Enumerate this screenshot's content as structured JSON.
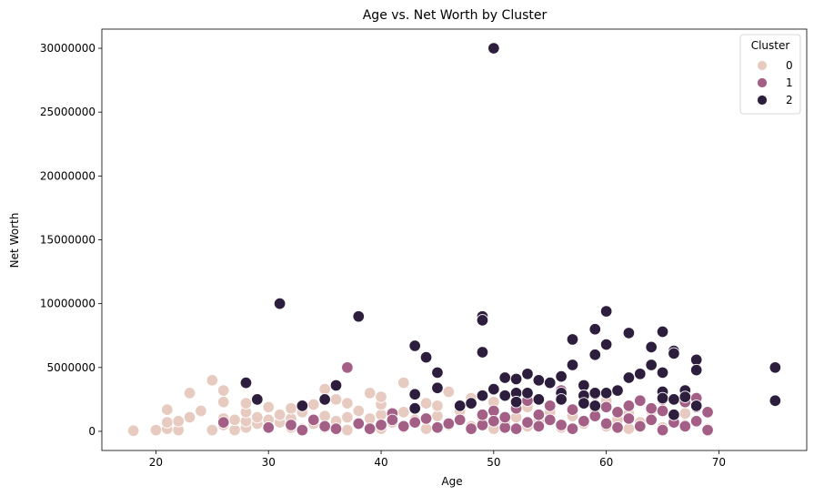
{
  "chart_data": {
    "type": "scatter",
    "title": "Age vs. Net Worth by Cluster",
    "xlabel": "Age",
    "ylabel": "Net Worth",
    "xlim": [
      15.2,
      77.8
    ],
    "ylim": [
      -1500000,
      31500000
    ],
    "xticks": [
      20,
      30,
      40,
      50,
      60,
      70
    ],
    "yticks": [
      0,
      5000000,
      10000000,
      15000000,
      20000000,
      25000000,
      30000000
    ],
    "grid": false,
    "legend": {
      "title": "Cluster",
      "position": "top-right"
    },
    "series": [
      {
        "name": "0",
        "color": "#e8cbc0",
        "points": [
          [
            18,
            50000
          ],
          [
            20,
            100000
          ],
          [
            21,
            200000
          ],
          [
            21,
            700000
          ],
          [
            21,
            1700000
          ],
          [
            22,
            100000
          ],
          [
            22,
            800000
          ],
          [
            23,
            1100000
          ],
          [
            23,
            3000000
          ],
          [
            24,
            1600000
          ],
          [
            25,
            100000
          ],
          [
            25,
            4000000
          ],
          [
            26,
            500000
          ],
          [
            26,
            1000000
          ],
          [
            26,
            2300000
          ],
          [
            26,
            3200000
          ],
          [
            27,
            100000
          ],
          [
            27,
            900000
          ],
          [
            28,
            300000
          ],
          [
            28,
            800000
          ],
          [
            28,
            1500000
          ],
          [
            28,
            2200000
          ],
          [
            29,
            600000
          ],
          [
            29,
            1100000
          ],
          [
            30,
            400000
          ],
          [
            30,
            900000
          ],
          [
            30,
            1900000
          ],
          [
            31,
            700000
          ],
          [
            31,
            1300000
          ],
          [
            32,
            300000
          ],
          [
            32,
            1000000
          ],
          [
            32,
            1800000
          ],
          [
            33,
            200000
          ],
          [
            33,
            1500000
          ],
          [
            34,
            600000
          ],
          [
            34,
            2100000
          ],
          [
            35,
            300000
          ],
          [
            35,
            1200000
          ],
          [
            35,
            3300000
          ],
          [
            36,
            800000
          ],
          [
            36,
            2500000
          ],
          [
            37,
            100000
          ],
          [
            37,
            1100000
          ],
          [
            37,
            2200000
          ],
          [
            38,
            600000
          ],
          [
            38,
            1600000
          ],
          [
            39,
            1000000
          ],
          [
            39,
            3000000
          ],
          [
            40,
            200000
          ],
          [
            40,
            1300000
          ],
          [
            40,
            2100000
          ],
          [
            40,
            2700000
          ],
          [
            41,
            700000
          ],
          [
            42,
            300000
          ],
          [
            42,
            1500000
          ],
          [
            42,
            3800000
          ],
          [
            43,
            900000
          ],
          [
            44,
            200000
          ],
          [
            44,
            2200000
          ],
          [
            45,
            1200000
          ],
          [
            45,
            2000000
          ],
          [
            46,
            3100000
          ],
          [
            46,
            500000
          ],
          [
            47,
            1600000
          ],
          [
            48,
            400000
          ],
          [
            48,
            2600000
          ],
          [
            49,
            1000000
          ],
          [
            49,
            2900000
          ],
          [
            50,
            200000
          ],
          [
            50,
            1700000
          ],
          [
            50,
            2300000
          ],
          [
            51,
            600000
          ],
          [
            52,
            1100000
          ],
          [
            53,
            400000
          ],
          [
            53,
            1900000
          ],
          [
            54,
            800000
          ],
          [
            55,
            1500000
          ],
          [
            56,
            300000
          ],
          [
            57,
            1200000
          ],
          [
            58,
            600000
          ],
          [
            59,
            1800000
          ],
          [
            60,
            400000
          ],
          [
            60,
            2400000
          ],
          [
            61,
            900000
          ],
          [
            62,
            200000
          ],
          [
            62,
            1400000
          ],
          [
            63,
            700000
          ],
          [
            64,
            1600000
          ],
          [
            65,
            300000
          ],
          [
            66,
            1000000
          ],
          [
            67,
            1400000
          ],
          [
            67,
            500000
          ],
          [
            68,
            800000
          ],
          [
            69,
            200000
          ]
        ]
      },
      {
        "name": "1",
        "color": "#a45f86",
        "points": [
          [
            26,
            700000
          ],
          [
            30,
            300000
          ],
          [
            32,
            500000
          ],
          [
            33,
            100000
          ],
          [
            34,
            900000
          ],
          [
            35,
            400000
          ],
          [
            36,
            200000
          ],
          [
            37,
            5000000
          ],
          [
            38,
            600000
          ],
          [
            39,
            200000
          ],
          [
            40,
            500000
          ],
          [
            41,
            1400000
          ],
          [
            41,
            900000
          ],
          [
            42,
            400000
          ],
          [
            43,
            700000
          ],
          [
            44,
            1000000
          ],
          [
            45,
            300000
          ],
          [
            46,
            600000
          ],
          [
            47,
            900000
          ],
          [
            48,
            200000
          ],
          [
            49,
            500000
          ],
          [
            49,
            1300000
          ],
          [
            50,
            1600000
          ],
          [
            50,
            800000
          ],
          [
            51,
            300000
          ],
          [
            51,
            1100000
          ],
          [
            52,
            200000
          ],
          [
            52,
            1800000
          ],
          [
            53,
            700000
          ],
          [
            53,
            2400000
          ],
          [
            54,
            400000
          ],
          [
            54,
            1300000
          ],
          [
            55,
            900000
          ],
          [
            55,
            2000000
          ],
          [
            56,
            3200000
          ],
          [
            56,
            500000
          ],
          [
            57,
            1700000
          ],
          [
            57,
            200000
          ],
          [
            58,
            800000
          ],
          [
            58,
            2200000
          ],
          [
            59,
            2900000
          ],
          [
            59,
            1200000
          ],
          [
            60,
            600000
          ],
          [
            60,
            1900000
          ],
          [
            61,
            300000
          ],
          [
            61,
            1500000
          ],
          [
            62,
            1000000
          ],
          [
            62,
            2000000
          ],
          [
            63,
            2400000
          ],
          [
            63,
            400000
          ],
          [
            64,
            1800000
          ],
          [
            64,
            900000
          ],
          [
            65,
            1600000
          ],
          [
            65,
            100000
          ],
          [
            65,
            2500000
          ],
          [
            66,
            700000
          ],
          [
            66,
            1300000
          ],
          [
            67,
            2300000
          ],
          [
            67,
            400000
          ],
          [
            68,
            1900000
          ],
          [
            68,
            2600000
          ],
          [
            68,
            800000
          ],
          [
            69,
            1500000
          ],
          [
            69,
            100000
          ]
        ]
      },
      {
        "name": "2",
        "color": "#2d1e3e",
        "points": [
          [
            28,
            3800000
          ],
          [
            29,
            2500000
          ],
          [
            31,
            10000000
          ],
          [
            33,
            2000000
          ],
          [
            35,
            2500000
          ],
          [
            36,
            3600000
          ],
          [
            38,
            9000000
          ],
          [
            43,
            6700000
          ],
          [
            43,
            2900000
          ],
          [
            43,
            1800000
          ],
          [
            44,
            5800000
          ],
          [
            45,
            4600000
          ],
          [
            45,
            3400000
          ],
          [
            47,
            2000000
          ],
          [
            48,
            2200000
          ],
          [
            49,
            9000000
          ],
          [
            49,
            8700000
          ],
          [
            49,
            6200000
          ],
          [
            49,
            2800000
          ],
          [
            50,
            30000000
          ],
          [
            50,
            3300000
          ],
          [
            51,
            4200000
          ],
          [
            51,
            2800000
          ],
          [
            52,
            4100000
          ],
          [
            52,
            3000000
          ],
          [
            52,
            2300000
          ],
          [
            53,
            4500000
          ],
          [
            53,
            3000000
          ],
          [
            54,
            4000000
          ],
          [
            54,
            2500000
          ],
          [
            55,
            3800000
          ],
          [
            56,
            4300000
          ],
          [
            56,
            3000000
          ],
          [
            56,
            2500000
          ],
          [
            57,
            7200000
          ],
          [
            57,
            5200000
          ],
          [
            58,
            3600000
          ],
          [
            58,
            2800000
          ],
          [
            58,
            2200000
          ],
          [
            59,
            8000000
          ],
          [
            59,
            6000000
          ],
          [
            59,
            3000000
          ],
          [
            59,
            2000000
          ],
          [
            60,
            9400000
          ],
          [
            60,
            6800000
          ],
          [
            60,
            3000000
          ],
          [
            61,
            3200000
          ],
          [
            62,
            7700000
          ],
          [
            62,
            4200000
          ],
          [
            63,
            4500000
          ],
          [
            64,
            6600000
          ],
          [
            64,
            5200000
          ],
          [
            65,
            7800000
          ],
          [
            65,
            4600000
          ],
          [
            65,
            3100000
          ],
          [
            65,
            2600000
          ],
          [
            66,
            6300000
          ],
          [
            66,
            6100000
          ],
          [
            66,
            2500000
          ],
          [
            66,
            1300000
          ],
          [
            67,
            3200000
          ],
          [
            67,
            2700000
          ],
          [
            68,
            5600000
          ],
          [
            68,
            4800000
          ],
          [
            68,
            2000000
          ],
          [
            75,
            5000000
          ],
          [
            75,
            2400000
          ]
        ]
      }
    ]
  }
}
